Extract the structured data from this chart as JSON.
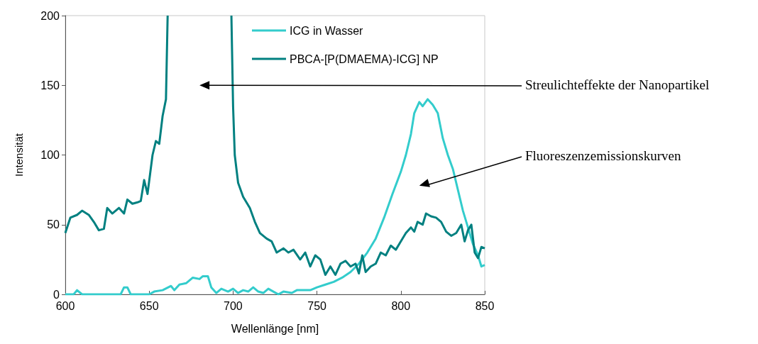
{
  "chart_data": {
    "type": "line",
    "xlabel": "Wellenlänge [nm]",
    "ylabel": "Intensität",
    "xlim": [
      600,
      850
    ],
    "xticks": [
      600,
      650,
      700,
      750,
      800,
      850
    ],
    "ylim": [
      0,
      200
    ],
    "yticks": [
      0,
      50,
      100,
      150,
      200
    ],
    "grid": false,
    "legend": "top",
    "marker": "none",
    "line_style": "solid",
    "annotations": [
      "Streulichteffekte der Nanopartikel",
      "Fluoreszenzemissionskurven"
    ],
    "series": [
      {
        "name": "ICG in Wasser",
        "color": "#33cccc",
        "x": [
          600,
          605,
          607,
          610,
          620,
          630,
          633,
          635,
          637,
          639,
          645,
          650,
          653,
          658,
          663,
          665,
          668,
          672,
          676,
          680,
          682,
          685,
          687,
          690,
          693,
          697,
          700,
          703,
          706,
          709,
          712,
          715,
          718,
          721,
          724,
          727,
          730,
          735,
          738,
          742,
          746,
          750,
          755,
          760,
          765,
          770,
          775,
          780,
          785,
          790,
          795,
          800,
          803,
          806,
          808,
          811,
          813,
          816,
          819,
          822,
          825,
          828,
          831,
          834,
          837,
          840,
          843,
          846,
          848,
          850
        ],
        "values": [
          0,
          0,
          3,
          0,
          0,
          0,
          0,
          5,
          5,
          0,
          0,
          0,
          2,
          3,
          6,
          3,
          7,
          8,
          12,
          11,
          13,
          13,
          5,
          1,
          4,
          2,
          4,
          1,
          3,
          2,
          5,
          2,
          1,
          4,
          2,
          0,
          2,
          1,
          3,
          3,
          3,
          5,
          7,
          9,
          12,
          16,
          22,
          30,
          40,
          55,
          72,
          88,
          100,
          115,
          130,
          138,
          135,
          140,
          136,
          130,
          112,
          100,
          90,
          75,
          60,
          48,
          36,
          28,
          20,
          21
        ]
      },
      {
        "name": "PBCA-[P(DMAEMA)-ICG] NP",
        "color": "#008080",
        "x": [
          600,
          603,
          607,
          610,
          614,
          617,
          620,
          623,
          625,
          628,
          632,
          635,
          637,
          640,
          643,
          645,
          647,
          649,
          652,
          654,
          656,
          658,
          660,
          661,
          680,
          699,
          700,
          701,
          703,
          706,
          710,
          713,
          716,
          720,
          723,
          726,
          730,
          733,
          736,
          740,
          743,
          746,
          749,
          752,
          755,
          758,
          761,
          764,
          767,
          770,
          773,
          775,
          777,
          779,
          782,
          785,
          788,
          791,
          794,
          797,
          800,
          803,
          806,
          808,
          810,
          813,
          815,
          818,
          821,
          824,
          827,
          830,
          833,
          836,
          838,
          840,
          842,
          844,
          846,
          848,
          850
        ],
        "values": [
          44,
          55,
          57,
          60,
          57,
          52,
          46,
          47,
          62,
          58,
          62,
          58,
          68,
          65,
          66,
          67,
          82,
          72,
          100,
          110,
          108,
          128,
          140,
          200,
          null,
          200,
          135,
          100,
          80,
          70,
          62,
          52,
          44,
          40,
          38,
          30,
          33,
          30,
          32,
          25,
          30,
          20,
          28,
          25,
          14,
          20,
          14,
          22,
          24,
          20,
          22,
          15,
          28,
          16,
          20,
          22,
          30,
          28,
          35,
          32,
          38,
          44,
          48,
          45,
          52,
          50,
          58,
          56,
          55,
          52,
          45,
          42,
          44,
          50,
          38,
          46,
          50,
          30,
          26,
          34,
          33
        ]
      }
    ]
  }
}
